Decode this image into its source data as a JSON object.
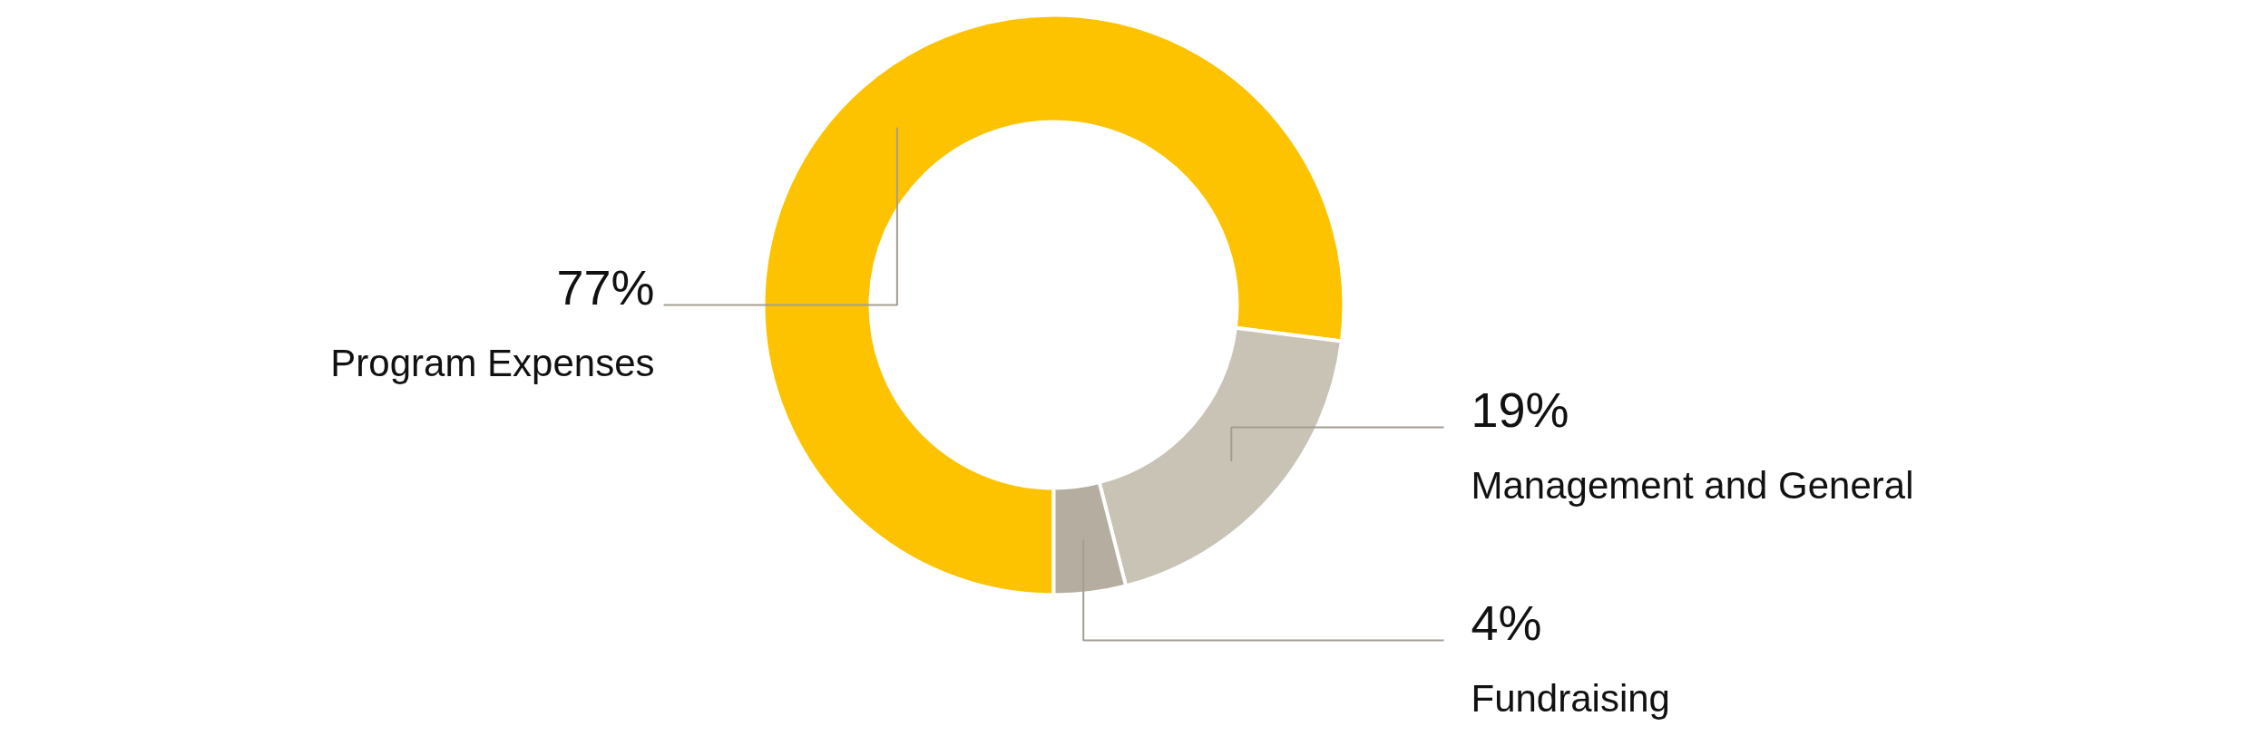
{
  "chart_data": {
    "type": "donut",
    "categories": [
      "Program Expenses",
      "Management and General",
      "Fundraising"
    ],
    "values": [
      77,
      19,
      4
    ],
    "value_labels": [
      "77%",
      "19%",
      "4%"
    ],
    "colors": [
      "#fdc300",
      "#c9c3b6",
      "#b5ad9f"
    ],
    "legend": false
  }
}
